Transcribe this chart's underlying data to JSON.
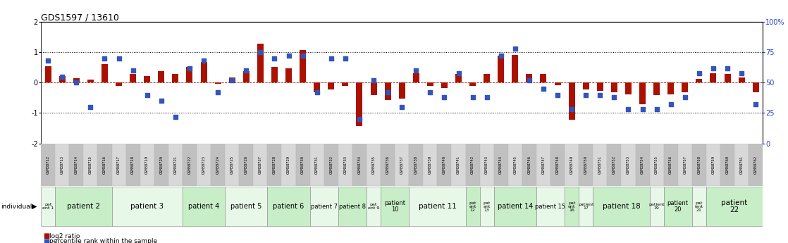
{
  "title": "GDS1597 / 13610",
  "samples": [
    "GSM38712",
    "GSM38713",
    "GSM38714",
    "GSM38715",
    "GSM38716",
    "GSM38717",
    "GSM38718",
    "GSM38719",
    "GSM38720",
    "GSM38721",
    "GSM38722",
    "GSM38723",
    "GSM38724",
    "GSM38725",
    "GSM38726",
    "GSM38727",
    "GSM38728",
    "GSM38729",
    "GSM38730",
    "GSM38731",
    "GSM38732",
    "GSM38733",
    "GSM38734",
    "GSM38735",
    "GSM38736",
    "GSM38737",
    "GSM38738",
    "GSM38739",
    "GSM38740",
    "GSM38741",
    "GSM38742",
    "GSM38743",
    "GSM38744",
    "GSM38745",
    "GSM38746",
    "GSM38747",
    "GSM38748",
    "GSM38749",
    "GSM38750",
    "GSM38751",
    "GSM38752",
    "GSM38753",
    "GSM38754",
    "GSM38755",
    "GSM38756",
    "GSM38757",
    "GSM38758",
    "GSM38759",
    "GSM38760",
    "GSM38761",
    "GSM38762"
  ],
  "log2_ratio": [
    0.55,
    0.22,
    0.15,
    0.1,
    0.62,
    -0.1,
    0.28,
    0.22,
    0.38,
    0.28,
    0.52,
    0.68,
    -0.05,
    0.18,
    0.38,
    1.28,
    0.52,
    0.48,
    1.08,
    -0.32,
    -0.22,
    -0.12,
    -1.42,
    -0.42,
    -0.58,
    -0.52,
    0.32,
    -0.12,
    -0.18,
    0.28,
    -0.12,
    0.28,
    0.88,
    0.92,
    0.28,
    0.28,
    -0.08,
    -1.22,
    -0.22,
    -0.28,
    -0.32,
    -0.38,
    -0.72,
    -0.42,
    -0.38,
    -0.32,
    0.12,
    0.32,
    0.28,
    0.18,
    -0.32
  ],
  "percentile": [
    68,
    55,
    50,
    30,
    70,
    70,
    60,
    40,
    35,
    22,
    62,
    68,
    42,
    52,
    60,
    75,
    70,
    72,
    72,
    42,
    70,
    70,
    20,
    52,
    42,
    30,
    60,
    42,
    38,
    58,
    38,
    38,
    72,
    78,
    52,
    45,
    40,
    28,
    40,
    40,
    38,
    28,
    28,
    28,
    32,
    38,
    58,
    62,
    62,
    58,
    32
  ],
  "patients": [
    {
      "label": "pat\nent 1",
      "start": 0,
      "end": 1
    },
    {
      "label": "patient 2",
      "start": 1,
      "end": 5
    },
    {
      "label": "patient 3",
      "start": 5,
      "end": 10
    },
    {
      "label": "patient 4",
      "start": 10,
      "end": 13
    },
    {
      "label": "patient 5",
      "start": 13,
      "end": 16
    },
    {
      "label": "patient 6",
      "start": 16,
      "end": 19
    },
    {
      "label": "patient 7",
      "start": 19,
      "end": 21
    },
    {
      "label": "patient 8",
      "start": 21,
      "end": 23
    },
    {
      "label": "pat\nent 9",
      "start": 23,
      "end": 24
    },
    {
      "label": "patient\n10",
      "start": 24,
      "end": 26
    },
    {
      "label": "patient 11",
      "start": 26,
      "end": 30
    },
    {
      "label": "pat\nent\n12",
      "start": 30,
      "end": 31
    },
    {
      "label": "pat\nent\n13",
      "start": 31,
      "end": 32
    },
    {
      "label": "patient 14",
      "start": 32,
      "end": 35
    },
    {
      "label": "patient 15",
      "start": 35,
      "end": 37
    },
    {
      "label": "pat\nent\n16",
      "start": 37,
      "end": 38
    },
    {
      "label": "patient\n17",
      "start": 38,
      "end": 39
    },
    {
      "label": "patient 18",
      "start": 39,
      "end": 43
    },
    {
      "label": "patient\n19",
      "start": 43,
      "end": 44
    },
    {
      "label": "patient\n20",
      "start": 44,
      "end": 46
    },
    {
      "label": "pat\nient\n21",
      "start": 46,
      "end": 47
    },
    {
      "label": "patient\n22",
      "start": 47,
      "end": 51
    }
  ],
  "ylim": [
    -2,
    2
  ],
  "y2lim": [
    0,
    100
  ],
  "yticks_left": [
    -2,
    -1,
    0,
    1,
    2
  ],
  "yticks_right": [
    0,
    25,
    50,
    75,
    100
  ],
  "ytick_labels_right": [
    "0",
    "25",
    "50",
    "75",
    "100%"
  ],
  "bar_color": "#aa1100",
  "dot_color": "#3355bb",
  "pat_color_a": "#c8eec8",
  "pat_color_b": "#e8f8e8",
  "sample_color_a": "#c0c0c0",
  "sample_color_b": "#d8d8d8"
}
